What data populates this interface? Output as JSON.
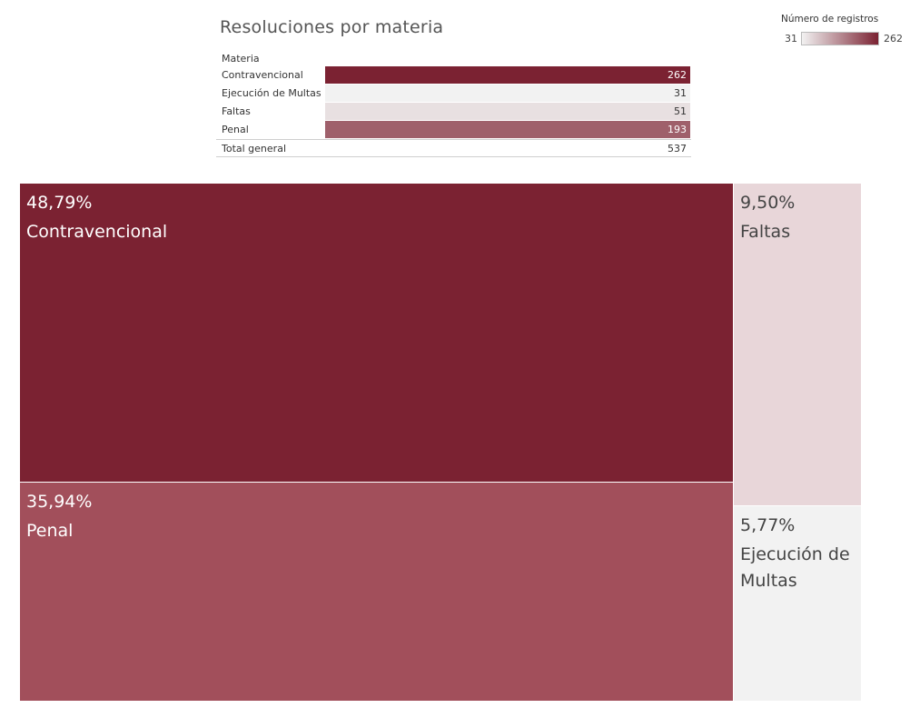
{
  "chart_data": {
    "type": "treemap",
    "title": "Resoluciones por materia",
    "legend": {
      "title": "Número de registros",
      "min": 31,
      "max": 262,
      "min_label": "31",
      "max_label": "262",
      "placement": "top-right",
      "color_low": "#f2f2f2",
      "color_high": "#7b2232"
    },
    "table": {
      "header": "Materia",
      "rows": [
        {
          "label": "Contravencional",
          "value": 262,
          "value_label": "262"
        },
        {
          "label": "Ejecución de Multas",
          "value": 31,
          "value_label": "31"
        },
        {
          "label": "Faltas",
          "value": 51,
          "value_label": "51"
        },
        {
          "label": "Penal",
          "value": 193,
          "value_label": "193"
        }
      ],
      "total_label": "Total general",
      "total_value": 537,
      "total_value_label": "537"
    },
    "tiles": [
      {
        "name": "Contravencional",
        "value": 262,
        "pct_label": "48,79%",
        "color": "#7b2232",
        "text_color": "#ffffff"
      },
      {
        "name": "Penal",
        "value": 193,
        "pct_label": "35,94%",
        "color": "#a24f5b",
        "text_color": "#ffffff"
      },
      {
        "name": "Faltas",
        "value": 51,
        "pct_label": "9,50%",
        "color": "#e8d6d9",
        "text_color": "#444444"
      },
      {
        "name": "Ejecución de Multas",
        "value": 31,
        "pct_label": "5,77%",
        "color": "#f2f2f2",
        "text_color": "#444444"
      }
    ]
  }
}
